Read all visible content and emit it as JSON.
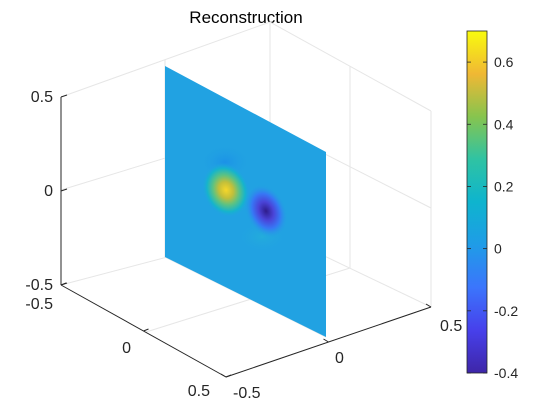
{
  "chart_data": {
    "type": "3d-slice",
    "title": "Reconstruction",
    "xlabel": "",
    "ylabel": "",
    "zlabel": "",
    "xlim": [
      -0.5,
      0.5
    ],
    "ylim": [
      -0.5,
      0.5
    ],
    "zlim": [
      -0.5,
      0.5
    ],
    "x_ticks": [
      "-0.5",
      "0",
      "0.5"
    ],
    "y_ticks": [
      "-0.5",
      "0",
      "0.5"
    ],
    "z_ticks": [
      "-0.5",
      "0",
      "0.5"
    ],
    "grid": true,
    "slice": {
      "plane": "x",
      "x": 0,
      "background_value": 0
    },
    "features": [
      {
        "kind": "maximum",
        "value": 0.7,
        "y": -0.21,
        "z": 0.06
      },
      {
        "kind": "minimum",
        "value": -0.4,
        "y": 0.11,
        "z": -0.06
      }
    ],
    "colorbar": {
      "location": "right",
      "colormap": "parula",
      "min": -0.4,
      "max": 0.7,
      "ticks": [
        "-0.4",
        "-0.2",
        "0",
        "0.2",
        "0.4",
        "0.6"
      ],
      "tick_values": [
        -0.4,
        -0.2,
        0,
        0.2,
        0.4,
        0.6
      ]
    }
  }
}
